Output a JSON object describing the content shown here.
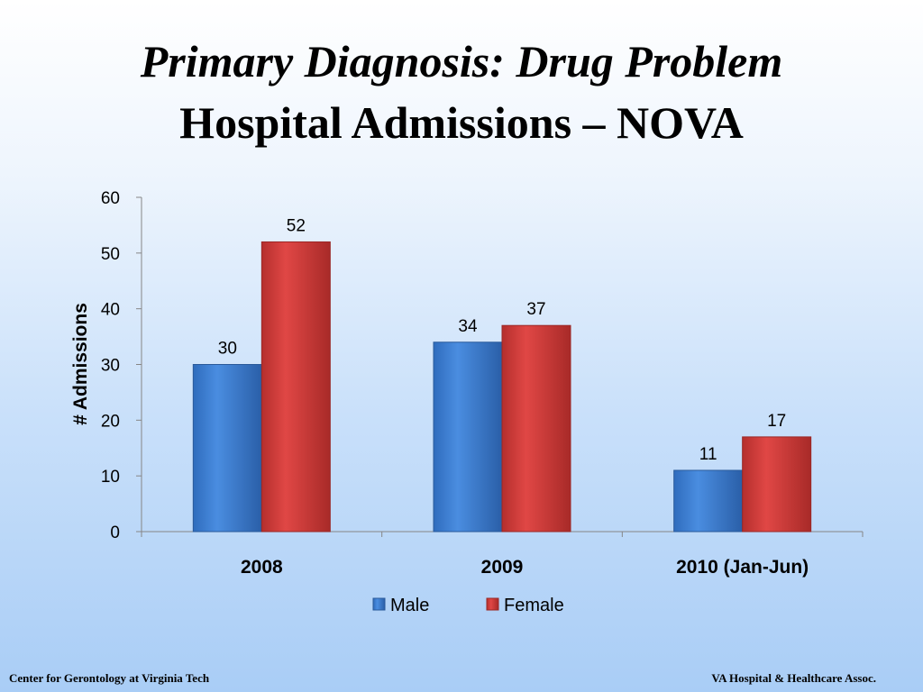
{
  "slide": {
    "title_line1": "Primary Diagnosis: Drug Problem",
    "title_line2": "Hospital Admissions – NOVA",
    "footer_left": "Center for Gerontology at Virginia Tech",
    "footer_right": "VA Hospital  & Healthcare Assoc."
  },
  "chart_data": {
    "type": "bar",
    "title": "",
    "xlabel": "",
    "ylabel": "# Admissions",
    "categories": [
      "2008",
      "2009",
      "2010 (Jan-Jun)"
    ],
    "series": [
      {
        "name": "Male",
        "values": [
          30,
          34,
          11
        ],
        "color": "#3d7fd3"
      },
      {
        "name": "Female",
        "values": [
          52,
          37,
          17
        ],
        "color": "#d63c3a"
      }
    ],
    "ylim": [
      0,
      60
    ],
    "yticks": [
      0,
      10,
      20,
      30,
      40,
      50,
      60
    ],
    "data_labels": true,
    "grid": false,
    "legend": "bottom"
  }
}
